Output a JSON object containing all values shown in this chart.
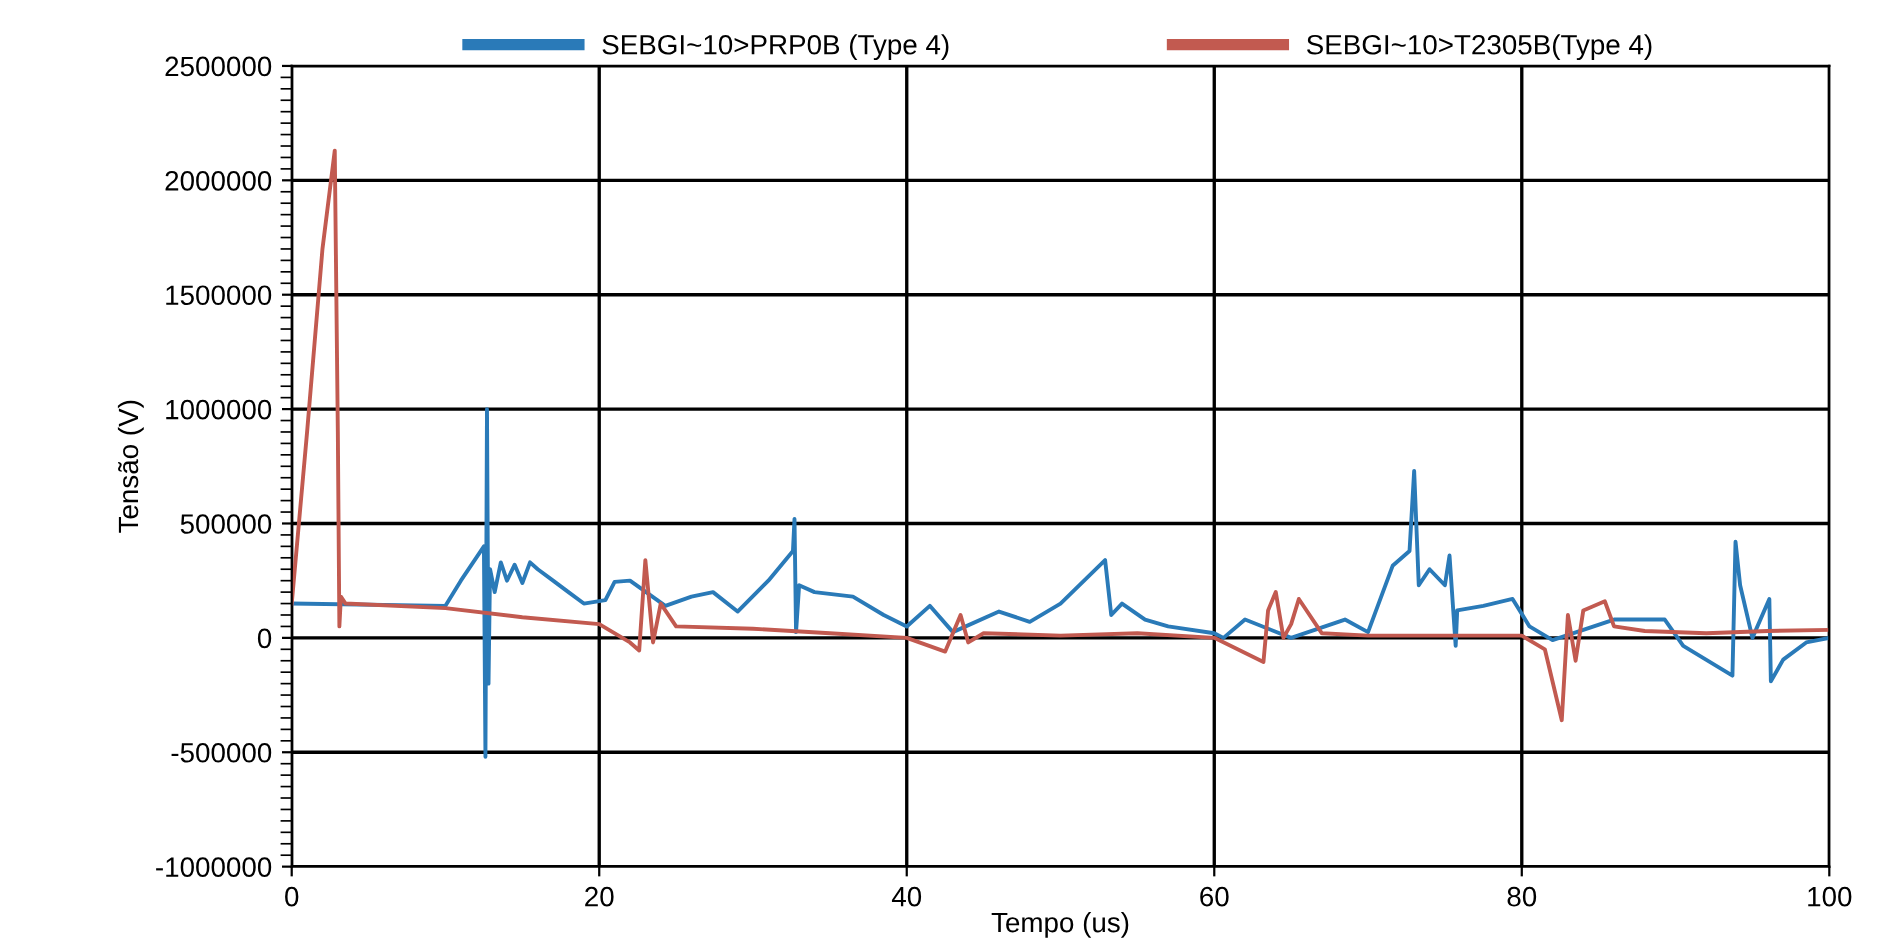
{
  "chart_data": {
    "type": "line",
    "xlabel": "Tempo (us)",
    "ylabel": "Tensão (V)",
    "xlim": [
      0,
      100
    ],
    "xticks": [
      0,
      20,
      40,
      60,
      80,
      100
    ],
    "ylim": [
      -1000000,
      2500000
    ],
    "yticks": [
      -1000000,
      -500000,
      0,
      500000,
      1000000,
      1500000,
      2000000,
      2500000
    ],
    "grid": true,
    "legend": "top",
    "line_style": "solid",
    "marker": "none",
    "series": [
      {
        "name": "SEBGI~10>PRP0B (Type 4)",
        "color": "#2a7ab8",
        "x": [
          0,
          10,
          11,
          12.5,
          12.6,
          12.7,
          12.8,
          12.9,
          13.2,
          13.6,
          14,
          14.5,
          15,
          15.5,
          16,
          17,
          18,
          19,
          20.4,
          21,
          22,
          24.3,
          26,
          27.4,
          29,
          31,
          32.6,
          32.7,
          32.8,
          33,
          34,
          36.5,
          38.5,
          40,
          41.5,
          43,
          46,
          48,
          50,
          52.9,
          53.3,
          54,
          55.5,
          57,
          60,
          60.6,
          62,
          65,
          68.5,
          70,
          71.6,
          72.7,
          73,
          73.3,
          74,
          75,
          75.3,
          75.7,
          75.8,
          77.5,
          79.4,
          80.5,
          82,
          86,
          89.3,
          90.5,
          93.7,
          93.9,
          94.2,
          95,
          96.1,
          96.2,
          97,
          98.5,
          100
        ],
        "values": [
          150000,
          140000,
          250000,
          400000,
          -520000,
          1000000,
          -200000,
          300000,
          200000,
          330000,
          250000,
          320000,
          240000,
          330000,
          300000,
          250000,
          200000,
          150000,
          165000,
          245000,
          250000,
          140000,
          180000,
          200000,
          115000,
          250000,
          380000,
          520000,
          25000,
          230000,
          200000,
          180000,
          100000,
          50000,
          140000,
          25000,
          115000,
          70000,
          150000,
          340000,
          100000,
          150000,
          80000,
          50000,
          20000,
          0,
          80000,
          0,
          80000,
          25000,
          315000,
          380000,
          730000,
          230000,
          300000,
          230000,
          360000,
          -35000,
          120000,
          140000,
          170000,
          50000,
          -10000,
          80000,
          80000,
          -35000,
          -165000,
          420000,
          230000,
          0,
          170000,
          -190000,
          -95000,
          -20000,
          0
        ]
      },
      {
        "name": "SEBGI~10>T2305B(Type 4)",
        "color": "#c25a50",
        "x": [
          0,
          1,
          2,
          2.8,
          3,
          3.1,
          3.2,
          3.5,
          10,
          15,
          20,
          22,
          22.6,
          23,
          23.5,
          24,
          25,
          30,
          35,
          40,
          42.5,
          43.5,
          44,
          45,
          50,
          55,
          60,
          63.2,
          63.5,
          64,
          64.5,
          65,
          65.5,
          67,
          70,
          75,
          80,
          81.5,
          82.6,
          83,
          83.5,
          84,
          85.4,
          86,
          88,
          92,
          96,
          100
        ],
        "values": [
          150000,
          900000,
          1700000,
          2130000,
          900000,
          50000,
          180000,
          150000,
          130000,
          90000,
          60000,
          -20000,
          -55000,
          340000,
          -20000,
          150000,
          50000,
          40000,
          20000,
          0,
          -60000,
          100000,
          -20000,
          20000,
          10000,
          20000,
          0,
          -105000,
          120000,
          200000,
          0,
          60000,
          170000,
          20000,
          10000,
          10000,
          10000,
          -50000,
          -360000,
          100000,
          -100000,
          120000,
          160000,
          50000,
          30000,
          20000,
          30000,
          35000
        ]
      }
    ]
  }
}
